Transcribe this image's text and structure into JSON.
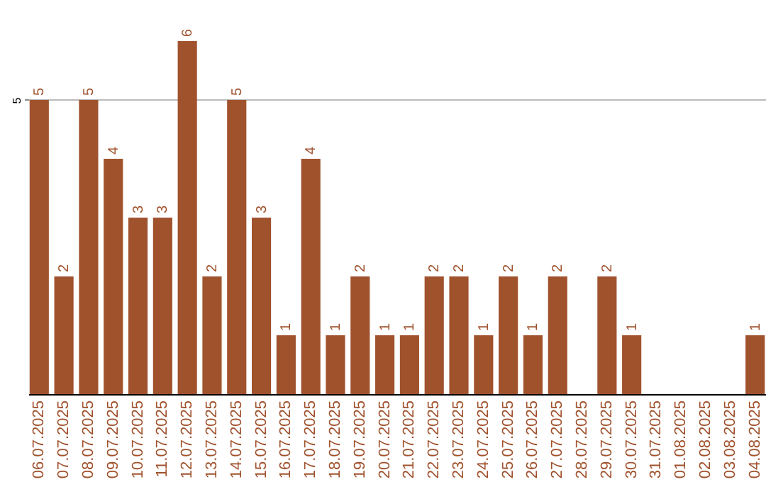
{
  "chart_data": {
    "type": "bar",
    "categories": [
      "06.07.2025",
      "07.07.2025",
      "08.07.2025",
      "09.07.2025",
      "10.07.2025",
      "11.07.2025",
      "12.07.2025",
      "13.07.2025",
      "14.07.2025",
      "15.07.2025",
      "16.07.2025",
      "17.07.2025",
      "18.07.2025",
      "19.07.2025",
      "20.07.2025",
      "21.07.2025",
      "22.07.2025",
      "23.07.2025",
      "24.07.2025",
      "25.07.2025",
      "26.07.2025",
      "27.07.2025",
      "28.07.2025",
      "29.07.2025",
      "30.07.2025",
      "31.07.2025",
      "01.08.2025",
      "02.08.2025",
      "03.08.2025",
      "04.08.2025"
    ],
    "values": [
      5,
      2,
      5,
      4,
      3,
      3,
      6,
      2,
      5,
      3,
      1,
      4,
      1,
      2,
      1,
      1,
      2,
      2,
      1,
      2,
      1,
      2,
      null,
      2,
      1,
      null,
      null,
      null,
      null,
      1
    ],
    "color": "#a0522d",
    "ylim": [
      0,
      6
    ],
    "yticks": [
      5
    ],
    "grid": "y",
    "data_labels": true
  }
}
